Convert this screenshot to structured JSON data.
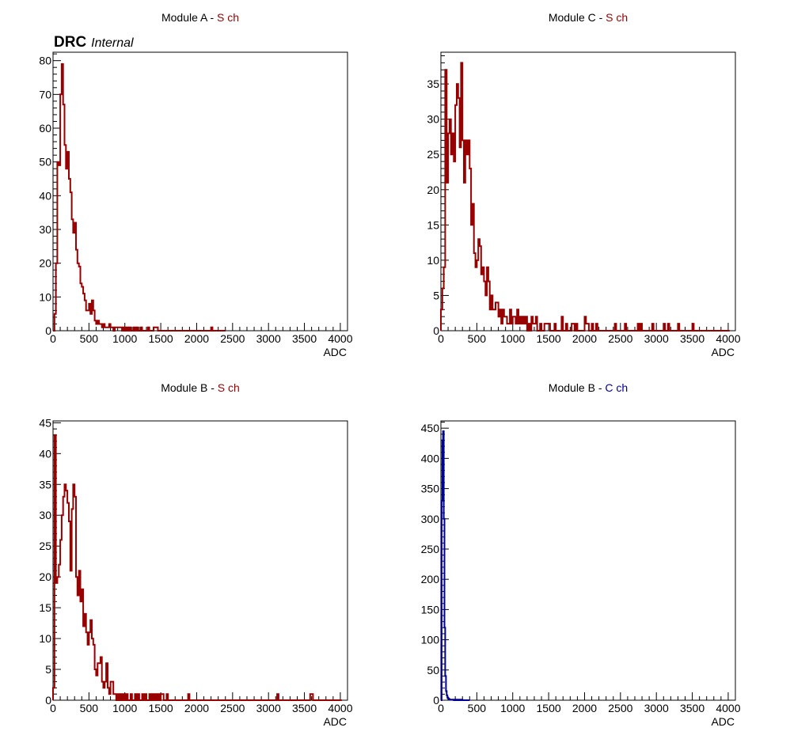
{
  "label": {
    "experiment": "DRC",
    "status": "Internal"
  },
  "chart_data": [
    {
      "type": "histogram",
      "title_prefix": "Module A - ",
      "title_suffix": "S ch",
      "title_suffix_color": "#990000",
      "line_color": "#990000",
      "xlabel": "ADC",
      "xlim": [
        0,
        4100
      ],
      "ylim": [
        0,
        82.5
      ],
      "xticks": [
        0,
        500,
        1000,
        1500,
        2000,
        2500,
        3000,
        3500,
        4000
      ],
      "yticks": [
        0,
        10,
        20,
        30,
        40,
        50,
        60,
        70,
        80
      ],
      "bin_width": 20,
      "counts": [
        0,
        5,
        20,
        50,
        49,
        70,
        79,
        67,
        55,
        48,
        53,
        45,
        41,
        33,
        29,
        32,
        24,
        20,
        19,
        14,
        13,
        11,
        9,
        6,
        6,
        8,
        5,
        9,
        6,
        3,
        2,
        3,
        2,
        2,
        1,
        2,
        1,
        1,
        1,
        2,
        1,
        1,
        0,
        1,
        1,
        1,
        1,
        1,
        0,
        1,
        0,
        1,
        0,
        1,
        0,
        0,
        1,
        0,
        1,
        0,
        0,
        1,
        0,
        0,
        0,
        0,
        1,
        0,
        0,
        0,
        1,
        1,
        1,
        0,
        0,
        0,
        0,
        0,
        0,
        0,
        0,
        0,
        0,
        0,
        0,
        0,
        0,
        0,
        0,
        0,
        0,
        0,
        0,
        0,
        0,
        0,
        0,
        0,
        0,
        0,
        0,
        0,
        0,
        0,
        0,
        0,
        0,
        0,
        0,
        0,
        1,
        0,
        0,
        0,
        0,
        0,
        0,
        0,
        0,
        0
      ]
    },
    {
      "type": "histogram",
      "title_prefix": "Module C - ",
      "title_suffix": "S ch",
      "title_suffix_color": "#990000",
      "line_color": "#990000",
      "xlabel": "ADC",
      "xlim": [
        0,
        4100
      ],
      "ylim": [
        0,
        39.5
      ],
      "xticks": [
        0,
        500,
        1000,
        1500,
        2000,
        2500,
        3000,
        3500,
        4000
      ],
      "yticks": [
        0,
        5,
        10,
        15,
        20,
        25,
        30,
        35
      ],
      "bin_width": 20,
      "counts": [
        3,
        6,
        9,
        37,
        21,
        28,
        30,
        25,
        28,
        24,
        32,
        35,
        33,
        26,
        38,
        27,
        21,
        27,
        25,
        27,
        23,
        15,
        18,
        11,
        9,
        10,
        13,
        12,
        8,
        9,
        7,
        5,
        9,
        7,
        3,
        5,
        3,
        3,
        4,
        4,
        2,
        3,
        1,
        3,
        2,
        2,
        1,
        1,
        3,
        1,
        2,
        2,
        1,
        3,
        1,
        2,
        1,
        2,
        1,
        2,
        0,
        1,
        0,
        2,
        1,
        1,
        2,
        0,
        0,
        1,
        0,
        0,
        1,
        1,
        1,
        1,
        0,
        0,
        0,
        1,
        0,
        0,
        0,
        0,
        2,
        0,
        0,
        1,
        0,
        0,
        0,
        1,
        1,
        0,
        1,
        0,
        0,
        0,
        0,
        0,
        2,
        1,
        1,
        0,
        0,
        1,
        0,
        0,
        1,
        0,
        0,
        0,
        0,
        0,
        0,
        0,
        0,
        0,
        0,
        0,
        0,
        1,
        0,
        0,
        0,
        0,
        0,
        0,
        1,
        0,
        0,
        0,
        0,
        0,
        0,
        0,
        0,
        1,
        0,
        1,
        0,
        0,
        0,
        0,
        0,
        0,
        0,
        1,
        0,
        0,
        0,
        0,
        0,
        0,
        0,
        1,
        0,
        0,
        1,
        0,
        0,
        0,
        0,
        0,
        0,
        1,
        0,
        0,
        0,
        0,
        0,
        0,
        0,
        0,
        0,
        1,
        0,
        0,
        0,
        0,
        0,
        0,
        0,
        0,
        0,
        0,
        0,
        0,
        0,
        0,
        0,
        0,
        0,
        0,
        0,
        0,
        0,
        0,
        0,
        0,
        0
      ]
    },
    {
      "type": "histogram",
      "title_prefix": "Module B - ",
      "title_suffix": "S ch",
      "title_suffix_color": "#990000",
      "line_color": "#990000",
      "xlabel": "ADC",
      "xlim": [
        0,
        4100
      ],
      "ylim": [
        0,
        45.3
      ],
      "xticks": [
        0,
        500,
        1000,
        1500,
        2000,
        2500,
        3000,
        3500,
        4000
      ],
      "yticks": [
        0,
        5,
        10,
        15,
        20,
        25,
        30,
        35,
        40,
        45
      ],
      "bin_width": 20,
      "counts": [
        2,
        43,
        19,
        20,
        22,
        26,
        30,
        33,
        35,
        34,
        32,
        29,
        21,
        31,
        35,
        33,
        20,
        17,
        21,
        16,
        18,
        12,
        14,
        11,
        9,
        11,
        13,
        10,
        9,
        5,
        4,
        6,
        6,
        7,
        3,
        2,
        3,
        6,
        2,
        1,
        3,
        3,
        1,
        1,
        0,
        1,
        0,
        1,
        0,
        1,
        0,
        1,
        0,
        0,
        1,
        0,
        0,
        1,
        0,
        1,
        0,
        0,
        1,
        0,
        1,
        0,
        0,
        1,
        0,
        1,
        0,
        1,
        0,
        1,
        0,
        1,
        1,
        0,
        0,
        1,
        0,
        0,
        0,
        0,
        0,
        0,
        0,
        0,
        0,
        0,
        0,
        0,
        0,
        0,
        1,
        0,
        0,
        0,
        0,
        0,
        0,
        0,
        0,
        0,
        0,
        0,
        0,
        0,
        0,
        0,
        0,
        0,
        0,
        0,
        0,
        0,
        0,
        0,
        0,
        0,
        0,
        0,
        0,
        0,
        0,
        0,
        0,
        0,
        0,
        0,
        0,
        0,
        0,
        0,
        0,
        0,
        0,
        0,
        0,
        0,
        0,
        0,
        0,
        0,
        0,
        0,
        0,
        0,
        0,
        0,
        0,
        0,
        0,
        0,
        0,
        0,
        1,
        0,
        0,
        0,
        0,
        0,
        0,
        0,
        0,
        0,
        0,
        0,
        0,
        0,
        0,
        0,
        0,
        0,
        0,
        0,
        0,
        0,
        0,
        1,
        1,
        0,
        0,
        0,
        0,
        0,
        0,
        0,
        0,
        0,
        0,
        0,
        0,
        0,
        0,
        0,
        0,
        0,
        0,
        0,
        0
      ]
    },
    {
      "type": "histogram",
      "title_prefix": "Module B - ",
      "title_suffix": "C ch",
      "title_suffix_color": "#000099",
      "line_color": "#000099",
      "xlabel": "ADC",
      "xlim": [
        0,
        4100
      ],
      "ylim": [
        0,
        462
      ],
      "xticks": [
        0,
        500,
        1000,
        1500,
        2000,
        2500,
        3000,
        3500,
        4000
      ],
      "yticks": [
        0,
        50,
        100,
        150,
        200,
        250,
        300,
        350,
        400,
        450
      ],
      "bin_width": 10,
      "counts": [
        0,
        330,
        430,
        445,
        300,
        120,
        40,
        15,
        8,
        4,
        3,
        2,
        1,
        1,
        1,
        1,
        1,
        1,
        0,
        1,
        0,
        1,
        0,
        1,
        0,
        0,
        1,
        0,
        0,
        1,
        0,
        0,
        0,
        0,
        0,
        0,
        0,
        0,
        0,
        0
      ]
    }
  ]
}
